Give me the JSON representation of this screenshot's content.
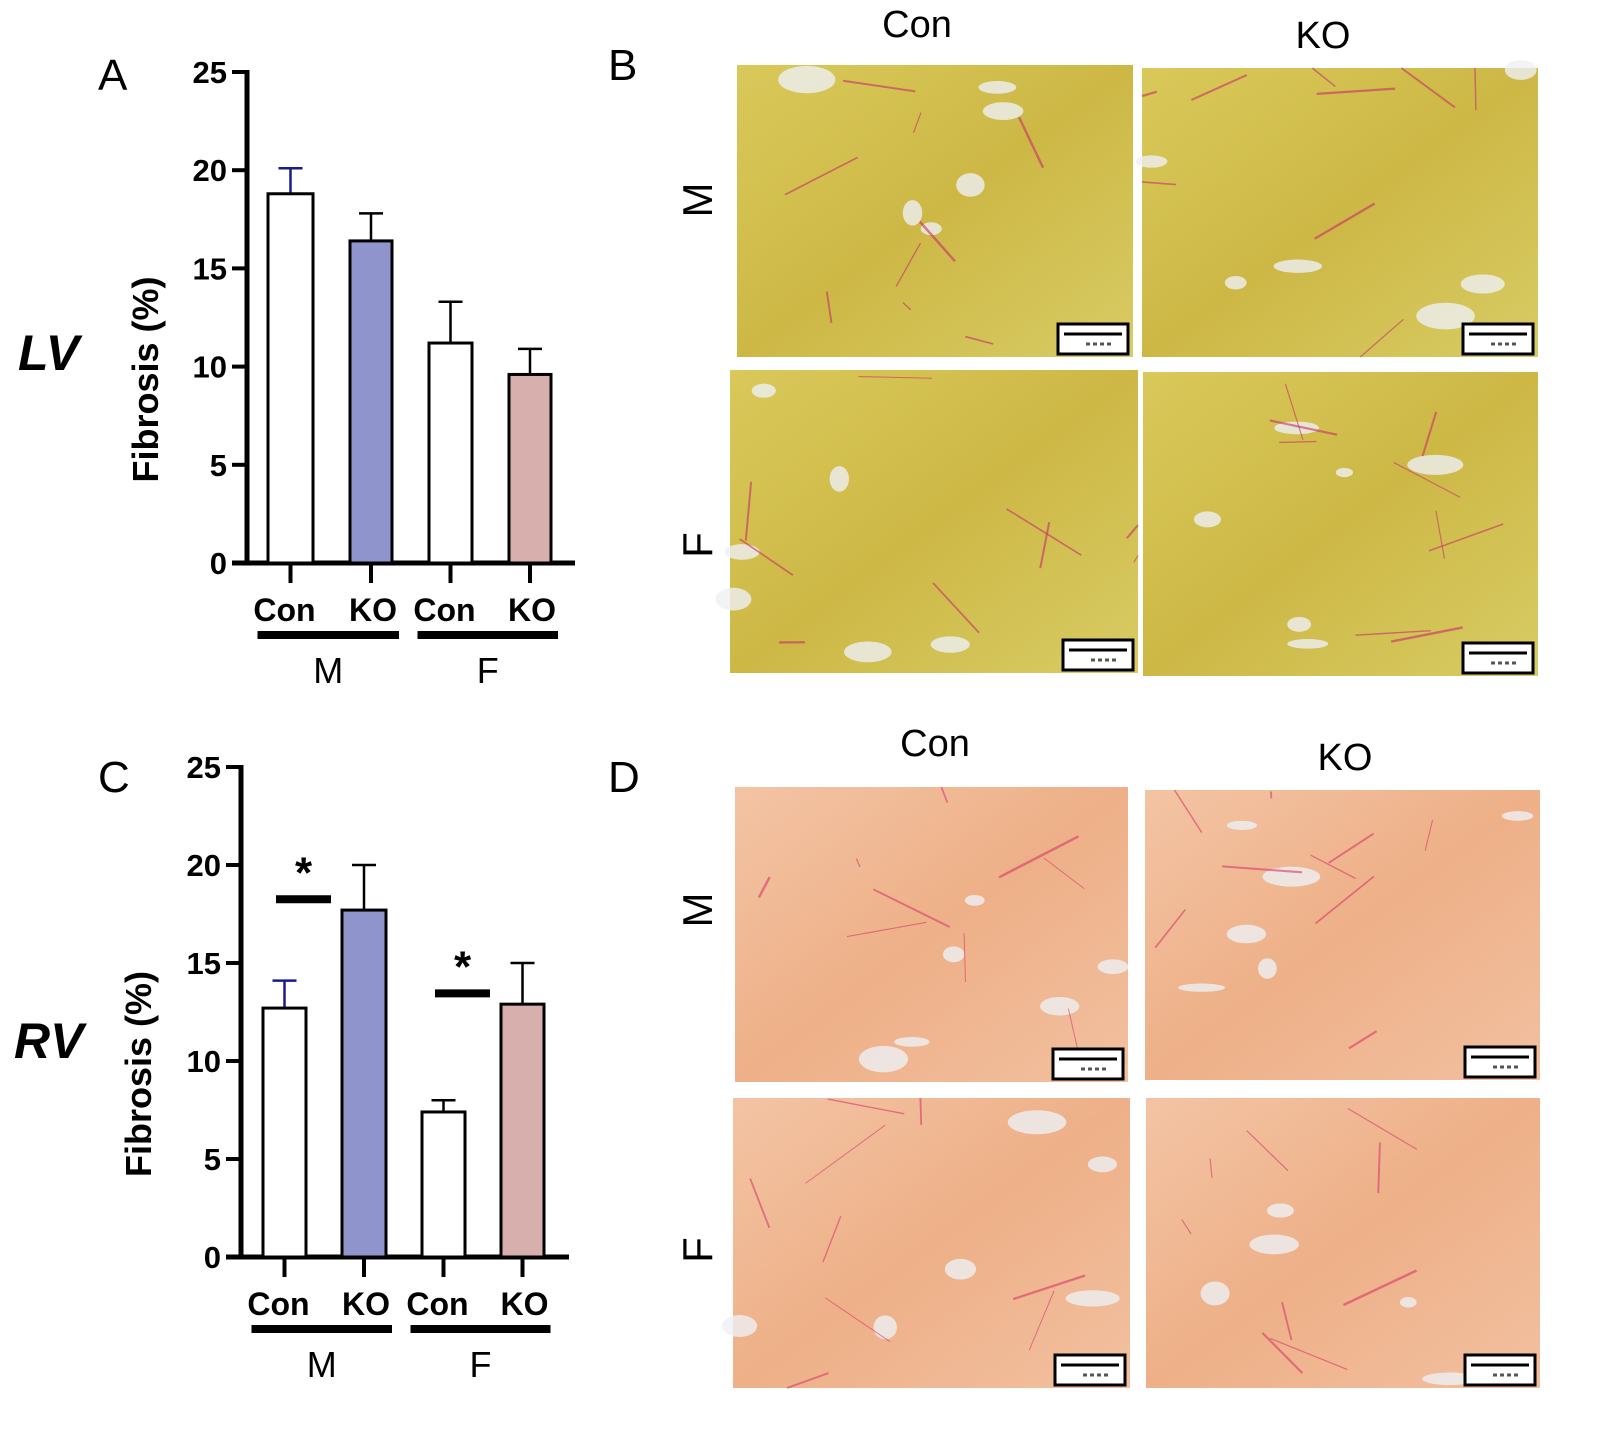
{
  "panel_labels": {
    "a": "A",
    "b": "B",
    "c": "C",
    "d": "D"
  },
  "row_titles": {
    "lv": "LV",
    "rv": "RV"
  },
  "chart_data": [
    {
      "type": "bar",
      "panel": "A",
      "ylabel": "Fibrosis (%)",
      "ylim": [
        0,
        25
      ],
      "yticks": [
        "0",
        "5",
        "10",
        "15",
        "20",
        "25"
      ],
      "categories": [
        "Con",
        "KO",
        "Con",
        "KO"
      ],
      "groups": [
        {
          "label": "M",
          "span": [
            0,
            1
          ]
        },
        {
          "label": "F",
          "span": [
            2,
            3
          ]
        }
      ],
      "values": [
        18.8,
        16.4,
        11.2,
        9.6
      ],
      "error_upper": [
        20.1,
        17.8,
        13.3,
        10.9
      ],
      "bar_colors": [
        "#ffffff",
        "#8f94cc",
        "#ffffff",
        "#d7b0ae"
      ],
      "error_colors": [
        "#1a1a8c",
        "#000000",
        "#000000",
        "#000000"
      ],
      "significance": []
    },
    {
      "type": "bar",
      "panel": "C",
      "ylabel": "Fibrosis (%)",
      "ylim": [
        0,
        25
      ],
      "yticks": [
        "0",
        "5",
        "10",
        "15",
        "20",
        "25"
      ],
      "categories": [
        "Con",
        "KO",
        "Con",
        "KO"
      ],
      "groups": [
        {
          "label": "M",
          "span": [
            0,
            1
          ]
        },
        {
          "label": "F",
          "span": [
            2,
            3
          ]
        }
      ],
      "values": [
        12.7,
        17.7,
        7.4,
        12.9
      ],
      "error_upper": [
        14.1,
        20.0,
        8.0,
        15.0
      ],
      "bar_colors": [
        "#ffffff",
        "#8f94cc",
        "#ffffff",
        "#d7b0ae"
      ],
      "error_colors": [
        "#1a1a8c",
        "#000000",
        "#000000",
        "#000000"
      ],
      "significance": [
        {
          "pair": [
            0,
            1
          ],
          "label": "*"
        },
        {
          "pair": [
            2,
            3
          ],
          "label": "*"
        }
      ]
    }
  ],
  "micrographs": {
    "b": {
      "col_labels": [
        "Con",
        "KO"
      ],
      "row_labels": [
        "M",
        "F"
      ],
      "stain_base": "#d6c24a",
      "stain_fiber": "#c8306a"
    },
    "d": {
      "col_labels": [
        "Con",
        "KO"
      ],
      "row_labels": [
        "M",
        "F"
      ],
      "stain_base": "#f0b894",
      "stain_fiber": "#d83a6a"
    }
  }
}
